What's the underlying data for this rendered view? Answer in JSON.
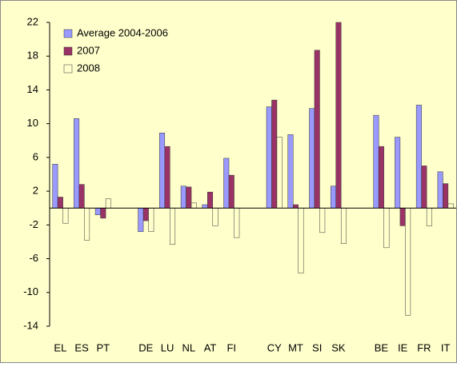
{
  "chart_data": {
    "type": "bar",
    "categories": [
      "EL",
      "ES",
      "PT",
      null,
      "DE",
      "LU",
      "NL",
      "AT",
      "FI",
      null,
      "CY",
      "MT",
      "SI",
      "SK",
      null,
      "BE",
      "IE",
      "FR",
      "IT"
    ],
    "series": [
      {
        "name": "Average 2004-2006",
        "color": "#9999ff",
        "values": [
          5.2,
          10.6,
          -0.8,
          null,
          -2.8,
          8.9,
          2.6,
          0.4,
          5.9,
          null,
          12.0,
          8.7,
          11.8,
          2.6,
          null,
          11.0,
          8.4,
          12.2,
          4.3
        ]
      },
      {
        "name": "2007",
        "color": "#993366",
        "values": [
          1.3,
          2.8,
          -1.2,
          null,
          -1.5,
          7.3,
          2.5,
          1.9,
          3.9,
          null,
          12.8,
          0.4,
          18.7,
          22,
          null,
          7.3,
          -2.1,
          5.0,
          2.9
        ]
      },
      {
        "name": "2008",
        "color": "#ffffcc",
        "values": [
          -1.8,
          -3.8,
          1.1,
          null,
          -2.8,
          -4.3,
          0.6,
          -2.1,
          -3.5,
          null,
          8.4,
          -7.7,
          -2.9,
          -4.2,
          null,
          -4.7,
          -12.7,
          -2.1,
          0.5
        ]
      }
    ],
    "ylim": [
      -14,
      22
    ],
    "yticks": [
      22,
      18,
      14,
      10,
      6,
      2,
      -2,
      -6,
      -10,
      -14
    ],
    "legend": "top-left",
    "grid": false
  }
}
